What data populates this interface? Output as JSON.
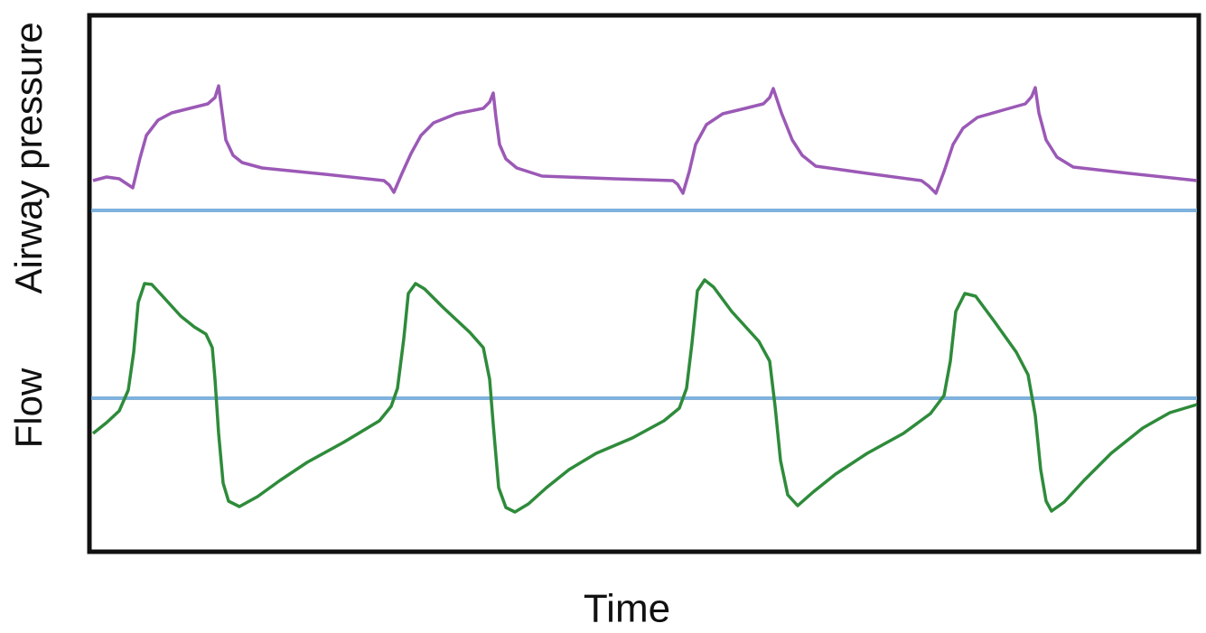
{
  "labels": {
    "pressure": "Airway pressure",
    "flow": "Flow",
    "time": "Time"
  }
}
